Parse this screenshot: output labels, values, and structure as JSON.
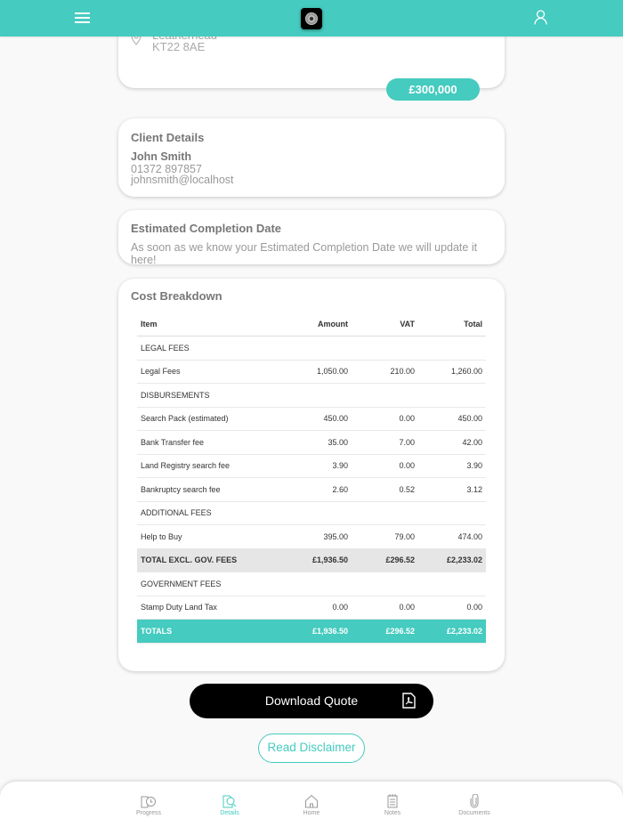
{
  "header": {
    "menu_icon": "hamburger-icon",
    "logo": "app-logo",
    "profile_icon": "user-icon"
  },
  "address": {
    "line1": "Leatherhead",
    "line2": "KT22 8AE",
    "price": "£300,000"
  },
  "client": {
    "title": "Client Details",
    "name": "John Smith",
    "phone": "01372 897857",
    "email": "johnsmith@localhost"
  },
  "completion": {
    "title": "Estimated Completion Date",
    "text": "As soon as we know your Estimated Completion Date we will update it here!"
  },
  "costs": {
    "title": "Cost Breakdown",
    "columns": [
      "Item",
      "Amount",
      "VAT",
      "Total"
    ],
    "rows": [
      {
        "type": "section",
        "item": "LEGAL FEES"
      },
      {
        "type": "row",
        "item": "Legal Fees",
        "amount": "1,050.00",
        "vat": "210.00",
        "total": "1,260.00"
      },
      {
        "type": "section",
        "item": "DISBURSEMENTS"
      },
      {
        "type": "row",
        "item": "Search Pack (estimated)",
        "amount": "450.00",
        "vat": "0.00",
        "total": "450.00"
      },
      {
        "type": "row",
        "item": "Bank Transfer fee",
        "amount": "35.00",
        "vat": "7.00",
        "total": "42.00"
      },
      {
        "type": "row",
        "item": "Land Registry search fee",
        "amount": "3.90",
        "vat": "0.00",
        "total": "3.90"
      },
      {
        "type": "row",
        "item": "Bankruptcy search fee",
        "amount": "2.60",
        "vat": "0.52",
        "total": "3.12"
      },
      {
        "type": "section",
        "item": "ADDITIONAL FEES"
      },
      {
        "type": "row",
        "item": "Help to Buy",
        "amount": "395.00",
        "vat": "79.00",
        "total": "474.00"
      },
      {
        "type": "tot",
        "item": "TOTAL EXCL. GOV. FEES",
        "amount": "£1,936.50",
        "vat": "£296.52",
        "total": "£2,233.02"
      },
      {
        "type": "section",
        "item": "GOVERNMENT FEES"
      },
      {
        "type": "row",
        "item": "Stamp Duty Land Tax",
        "amount": "0.00",
        "vat": "0.00",
        "total": "0.00"
      },
      {
        "type": "grand",
        "item": "TOTALS",
        "amount": "£1,936.50",
        "vat": "£296.52",
        "total": "£2,233.02"
      }
    ]
  },
  "actions": {
    "download": "Download Quote",
    "disclaimer": "Read Disclaimer"
  },
  "nav": [
    {
      "label": "Progress",
      "icon": "progress-icon"
    },
    {
      "label": "Details",
      "icon": "details-icon",
      "active": true
    },
    {
      "label": "Home",
      "icon": "home-icon"
    },
    {
      "label": "Notes",
      "icon": "notes-icon"
    },
    {
      "label": "Documents",
      "icon": "paperclip-icon"
    }
  ],
  "colors": {
    "accent": "#45cbbf"
  }
}
